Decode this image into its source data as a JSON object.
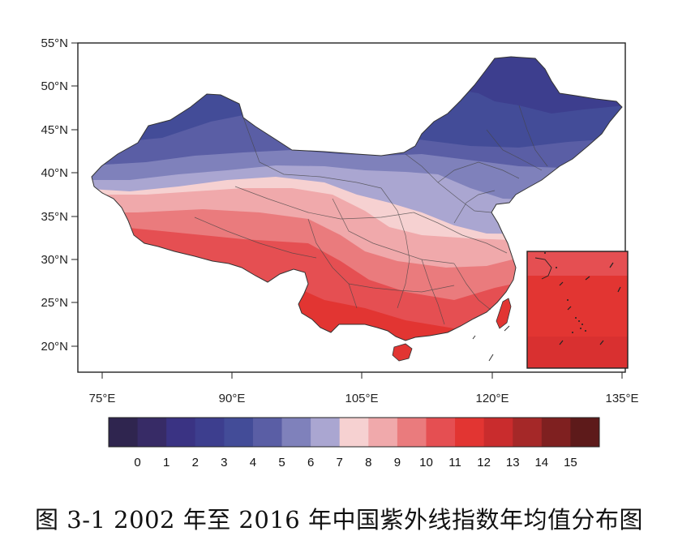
{
  "map": {
    "lat_labels": [
      "55°N",
      "50°N",
      "45°N",
      "40°N",
      "35°N",
      "30°N",
      "25°N",
      "20°N"
    ],
    "lon_labels": [
      "75°E",
      "90°E",
      "105°E",
      "120°E",
      "135°E"
    ],
    "lat_range": [
      17,
      55
    ],
    "lon_range": [
      72,
      136
    ],
    "colorbar_labels": [
      "0",
      "1",
      "2",
      "3",
      "4",
      "5",
      "6",
      "7",
      "8",
      "9",
      "10",
      "11",
      "12",
      "13",
      "14",
      "15"
    ],
    "colorbar_colors": [
      "#2f254f",
      "#372b66",
      "#3a3383",
      "#3d3e8e",
      "#434c98",
      "#5a5ea5",
      "#7f81bb",
      "#aaa6d1",
      "#f6d1d1",
      "#f0a9ab",
      "#ea7b7d",
      "#e54f52",
      "#e23532",
      "#c92c2d",
      "#a52828",
      "#7f2020",
      "#5d1a1a"
    ],
    "caption": "图 3-1 2002 年至 2016 年中国紫外线指数年均值分布图"
  }
}
